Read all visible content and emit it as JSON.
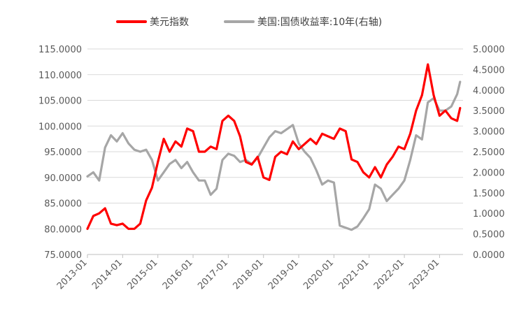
{
  "chart_data": {
    "type": "line",
    "dual_axis": true,
    "title": "",
    "legend": {
      "placement": "top",
      "entries": [
        {
          "name": "美元指数",
          "color": "#ff0000",
          "axis": "left"
        },
        {
          "name": "美国:国债收益率:10年(右轴)",
          "color": "#a6a6a6",
          "axis": "right"
        }
      ]
    },
    "x_axis": {
      "tick_labels": [
        "2013-01",
        "2014-01",
        "2015-01",
        "2016-01",
        "2017-01",
        "2018-01",
        "2019-01",
        "2020-01",
        "2021-01",
        "2022-01",
        "2023-01"
      ],
      "range": [
        "2013-01",
        "2023-09"
      ]
    },
    "y_left": {
      "range": [
        75,
        115
      ],
      "tick_labels": [
        "75.0000",
        "80.0000",
        "85.0000",
        "90.0000",
        "95.0000",
        "100.0000",
        "105.0000",
        "110.0000",
        "115.0000"
      ],
      "grid": true
    },
    "y_right": {
      "range": [
        0,
        5
      ],
      "tick_labels": [
        "0.0000",
        "0.5000",
        "1.0000",
        "1.5000",
        "2.0000",
        "2.5000",
        "3.0000",
        "3.5000",
        "4.0000",
        "4.5000",
        "5.0000"
      ]
    },
    "series": [
      {
        "name": "美元指数",
        "axis": "left",
        "color": "#ff0000",
        "x": [
          "2013-01",
          "2013-03",
          "2013-05",
          "2013-07",
          "2013-09",
          "2013-11",
          "2014-01",
          "2014-03",
          "2014-05",
          "2014-07",
          "2014-09",
          "2014-11",
          "2015-01",
          "2015-03",
          "2015-05",
          "2015-07",
          "2015-09",
          "2015-11",
          "2016-01",
          "2016-03",
          "2016-05",
          "2016-07",
          "2016-09",
          "2016-11",
          "2017-01",
          "2017-03",
          "2017-05",
          "2017-07",
          "2017-09",
          "2017-11",
          "2018-01",
          "2018-03",
          "2018-05",
          "2018-07",
          "2018-09",
          "2018-11",
          "2019-01",
          "2019-03",
          "2019-05",
          "2019-07",
          "2019-09",
          "2019-11",
          "2020-01",
          "2020-03",
          "2020-05",
          "2020-07",
          "2020-09",
          "2020-11",
          "2021-01",
          "2021-03",
          "2021-05",
          "2021-07",
          "2021-09",
          "2021-11",
          "2022-01",
          "2022-03",
          "2022-05",
          "2022-07",
          "2022-09",
          "2022-11",
          "2023-01",
          "2023-03",
          "2023-05",
          "2023-07",
          "2023-08"
        ],
        "y": [
          80,
          82.5,
          83,
          84,
          81,
          80.7,
          81,
          80,
          80,
          81,
          85.5,
          88,
          93,
          97.5,
          95,
          97,
          96,
          99.5,
          99,
          95,
          95,
          96,
          95.5,
          101,
          102,
          101,
          98,
          93,
          92.5,
          94,
          90,
          89.5,
          94,
          95,
          94.5,
          97,
          95.5,
          96.5,
          97.5,
          96.5,
          98.5,
          98,
          97.5,
          99.5,
          99,
          93.5,
          93,
          91,
          90,
          92,
          90,
          92.5,
          94,
          96,
          95.5,
          98.5,
          103,
          106,
          112,
          106,
          102,
          103,
          101.5,
          101,
          103.5
        ]
      },
      {
        "name": "美国:国债收益率:10年(右轴)",
        "axis": "right",
        "color": "#a6a6a6",
        "x": [
          "2013-01",
          "2013-03",
          "2013-05",
          "2013-07",
          "2013-09",
          "2013-11",
          "2014-01",
          "2014-03",
          "2014-05",
          "2014-07",
          "2014-09",
          "2014-11",
          "2015-01",
          "2015-03",
          "2015-05",
          "2015-07",
          "2015-09",
          "2015-11",
          "2016-01",
          "2016-03",
          "2016-05",
          "2016-07",
          "2016-09",
          "2016-11",
          "2017-01",
          "2017-03",
          "2017-05",
          "2017-07",
          "2017-09",
          "2017-11",
          "2018-01",
          "2018-03",
          "2018-05",
          "2018-07",
          "2018-09",
          "2018-11",
          "2019-01",
          "2019-03",
          "2019-05",
          "2019-07",
          "2019-09",
          "2019-11",
          "2020-01",
          "2020-03",
          "2020-05",
          "2020-07",
          "2020-09",
          "2020-11",
          "2021-01",
          "2021-03",
          "2021-05",
          "2021-07",
          "2021-09",
          "2021-11",
          "2022-01",
          "2022-03",
          "2022-05",
          "2022-07",
          "2022-09",
          "2022-11",
          "2023-01",
          "2023-03",
          "2023-05",
          "2023-07",
          "2023-08"
        ],
        "y": [
          1.9,
          2.0,
          1.8,
          2.6,
          2.9,
          2.75,
          2.95,
          2.7,
          2.55,
          2.5,
          2.55,
          2.3,
          1.8,
          2.0,
          2.2,
          2.3,
          2.1,
          2.25,
          2.0,
          1.8,
          1.8,
          1.45,
          1.6,
          2.3,
          2.45,
          2.4,
          2.25,
          2.3,
          2.2,
          2.35,
          2.6,
          2.85,
          3.0,
          2.95,
          3.05,
          3.15,
          2.7,
          2.5,
          2.35,
          2.05,
          1.7,
          1.8,
          1.75,
          0.7,
          0.65,
          0.6,
          0.68,
          0.88,
          1.1,
          1.7,
          1.6,
          1.3,
          1.45,
          1.6,
          1.8,
          2.3,
          2.9,
          2.8,
          3.7,
          3.8,
          3.5,
          3.5,
          3.6,
          3.9,
          4.2
        ]
      }
    ]
  }
}
